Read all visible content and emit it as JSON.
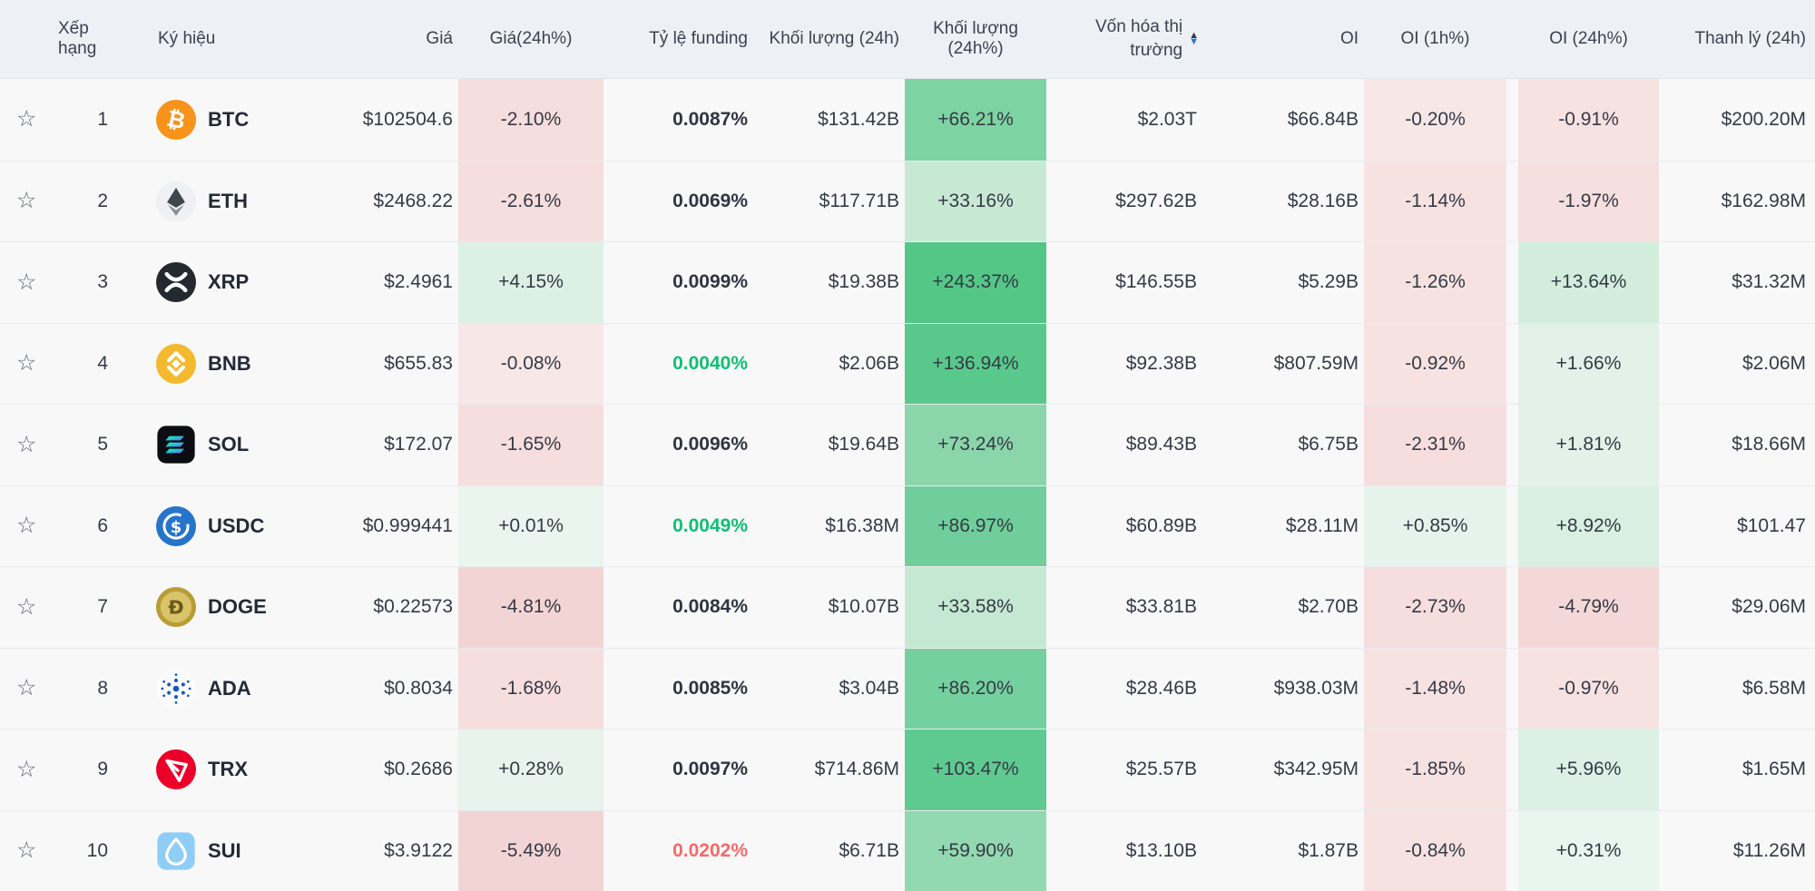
{
  "colors": {
    "header_bg": "#edf0f4",
    "row_bg": "#f8f8f9",
    "row_line": "#e9ebee",
    "text_primary": "#343a45",
    "text_symbol": "#232a36",
    "funding_green": "#0fbf74",
    "funding_red": "#f56a6a",
    "sort_active_down": "#2e6fe0",
    "sort_inactive_up": "#343b48"
  },
  "icons": {
    "star": "☆",
    "sort_up": "▲",
    "sort_down": "▼"
  },
  "header": {
    "rank": "Xếp hạng",
    "symbol": "Ký hiệu",
    "price": "Giá",
    "price_24h": "Giá(24h%)",
    "funding": "Tỷ lệ funding",
    "volume_24h": "Khối lượng (24h)",
    "volume_24h_pct": "Khối lượng (24h%)",
    "market_cap": "Vốn hóa thị trường",
    "oi": "OI",
    "oi_1h": "OI (1h%)",
    "oi_24h": "OI (24h%)",
    "liquidation_24h": "Thanh lý (24h)",
    "market_cap_sort_state": "descending"
  },
  "table": {
    "rows": [
      {
        "rank": "1",
        "symbol": "BTC",
        "coin": "btc",
        "price": "$102504.6",
        "price_24h_pct": {
          "text": "-2.10%",
          "bg": "#f6dede"
        },
        "funding": {
          "text": "0.0087%",
          "color": "#2f3540"
        },
        "volume_24h": "$131.42B",
        "volume_24h_pct": {
          "text": "+66.21%",
          "bg": "#7ed3a2"
        },
        "market_cap": "$2.03T",
        "oi": "$66.84B",
        "oi_1h_pct": {
          "text": "-0.20%",
          "bg": "#f8e7e7"
        },
        "oi_24h_pct": {
          "text": "-0.91%",
          "bg": "#f7e2e2"
        },
        "liquidation_24h": "$200.20M"
      },
      {
        "rank": "2",
        "symbol": "ETH",
        "coin": "eth",
        "price": "$2468.22",
        "price_24h_pct": {
          "text": "-2.61%",
          "bg": "#f6dede"
        },
        "funding": {
          "text": "0.0069%",
          "color": "#2f3540"
        },
        "volume_24h": "$117.71B",
        "volume_24h_pct": {
          "text": "+33.16%",
          "bg": "#c7e9d4"
        },
        "market_cap": "$297.62B",
        "oi": "$28.16B",
        "oi_1h_pct": {
          "text": "-1.14%",
          "bg": "#f7e2e2"
        },
        "oi_24h_pct": {
          "text": "-1.97%",
          "bg": "#f6dfdf"
        },
        "liquidation_24h": "$162.98M"
      },
      {
        "rank": "3",
        "symbol": "XRP",
        "coin": "xrp",
        "price": "$2.4961",
        "price_24h_pct": {
          "text": "+4.15%",
          "bg": "#ddf0e6"
        },
        "funding": {
          "text": "0.0099%",
          "color": "#2f3540"
        },
        "volume_24h": "$19.38B",
        "volume_24h_pct": {
          "text": "+243.37%",
          "bg": "#54c787"
        },
        "market_cap": "$146.55B",
        "oi": "$5.29B",
        "oi_1h_pct": {
          "text": "-1.26%",
          "bg": "#f7e2e2"
        },
        "oi_24h_pct": {
          "text": "+13.64%",
          "bg": "#d3eddd"
        },
        "liquidation_24h": "$31.32M"
      },
      {
        "rank": "4",
        "symbol": "BNB",
        "coin": "bnb",
        "price": "$655.83",
        "price_24h_pct": {
          "text": "-0.08%",
          "bg": "#f8e7e7"
        },
        "funding": {
          "text": "0.0040%",
          "color": "#0fbf74"
        },
        "volume_24h": "$2.06B",
        "volume_24h_pct": {
          "text": "+136.94%",
          "bg": "#59c98b"
        },
        "market_cap": "$92.38B",
        "oi": "$807.59M",
        "oi_1h_pct": {
          "text": "-0.92%",
          "bg": "#f7e2e2"
        },
        "oi_24h_pct": {
          "text": "+1.66%",
          "bg": "#e3f2e9"
        },
        "liquidation_24h": "$2.06M"
      },
      {
        "rank": "5",
        "symbol": "SOL",
        "coin": "sol",
        "price": "$172.07",
        "price_24h_pct": {
          "text": "-1.65%",
          "bg": "#f6dede"
        },
        "funding": {
          "text": "0.0096%",
          "color": "#2f3540"
        },
        "volume_24h": "$19.64B",
        "volume_24h_pct": {
          "text": "+73.24%",
          "bg": "#8bd5ab"
        },
        "market_cap": "$89.43B",
        "oi": "$6.75B",
        "oi_1h_pct": {
          "text": "-2.31%",
          "bg": "#f6dede"
        },
        "oi_24h_pct": {
          "text": "+1.81%",
          "bg": "#e3f2e9"
        },
        "liquidation_24h": "$18.66M"
      },
      {
        "rank": "6",
        "symbol": "USDC",
        "coin": "usdc",
        "price": "$0.999441",
        "price_24h_pct": {
          "text": "+0.01%",
          "bg": "#eaf5f0"
        },
        "funding": {
          "text": "0.0049%",
          "color": "#0fbf74"
        },
        "volume_24h": "$16.38M",
        "volume_24h_pct": {
          "text": "+86.97%",
          "bg": "#6fce9b"
        },
        "market_cap": "$60.89B",
        "oi": "$28.11M",
        "oi_1h_pct": {
          "text": "+0.85%",
          "bg": "#e6f3ec"
        },
        "oi_24h_pct": {
          "text": "+8.92%",
          "bg": "#d9efe2"
        },
        "liquidation_24h": "$101.47"
      },
      {
        "rank": "7",
        "symbol": "DOGE",
        "coin": "doge",
        "price": "$0.22573",
        "price_24h_pct": {
          "text": "-4.81%",
          "bg": "#f3d4d4"
        },
        "funding": {
          "text": "0.0084%",
          "color": "#2f3540"
        },
        "volume_24h": "$10.07B",
        "volume_24h_pct": {
          "text": "+33.58%",
          "bg": "#c5e8d2"
        },
        "market_cap": "$33.81B",
        "oi": "$2.70B",
        "oi_1h_pct": {
          "text": "-2.73%",
          "bg": "#f6dede"
        },
        "oi_24h_pct": {
          "text": "-4.79%",
          "bg": "#f4d8d8"
        },
        "liquidation_24h": "$29.06M"
      },
      {
        "rank": "8",
        "symbol": "ADA",
        "coin": "ada",
        "price": "$0.8034",
        "price_24h_pct": {
          "text": "-1.68%",
          "bg": "#f6dede"
        },
        "funding": {
          "text": "0.0085%",
          "color": "#2f3540"
        },
        "volume_24h": "$3.04B",
        "volume_24h_pct": {
          "text": "+86.20%",
          "bg": "#74d09f"
        },
        "market_cap": "$28.46B",
        "oi": "$938.03M",
        "oi_1h_pct": {
          "text": "-1.48%",
          "bg": "#f7e2e2"
        },
        "oi_24h_pct": {
          "text": "-0.97%",
          "bg": "#f7e2e2"
        },
        "liquidation_24h": "$6.58M"
      },
      {
        "rank": "9",
        "symbol": "TRX",
        "coin": "trx",
        "price": "$0.2686",
        "price_24h_pct": {
          "text": "+0.28%",
          "bg": "#e7f3ec"
        },
        "funding": {
          "text": "0.0097%",
          "color": "#2f3540"
        },
        "volume_24h": "$714.86M",
        "volume_24h_pct": {
          "text": "+103.47%",
          "bg": "#5fca90"
        },
        "market_cap": "$25.57B",
        "oi": "$342.95M",
        "oi_1h_pct": {
          "text": "-1.85%",
          "bg": "#f7e2e2"
        },
        "oi_24h_pct": {
          "text": "+5.96%",
          "bg": "#dcf0e5"
        },
        "liquidation_24h": "$1.65M"
      },
      {
        "rank": "10",
        "symbol": "SUI",
        "coin": "sui",
        "price": "$3.9122",
        "price_24h_pct": {
          "text": "-5.49%",
          "bg": "#f3d4d4"
        },
        "funding": {
          "text": "0.0202%",
          "color": "#f56a6a"
        },
        "volume_24h": "$6.71B",
        "volume_24h_pct": {
          "text": "+59.90%",
          "bg": "#92d8b0"
        },
        "market_cap": "$13.10B",
        "oi": "$1.87B",
        "oi_1h_pct": {
          "text": "-0.84%",
          "bg": "#f7e2e2"
        },
        "oi_24h_pct": {
          "text": "+0.31%",
          "bg": "#e9f5ef"
        },
        "liquidation_24h": "$11.26M"
      }
    ]
  }
}
